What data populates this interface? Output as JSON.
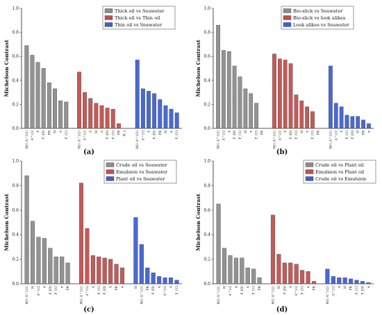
{
  "chart_data": [
    {
      "panel": "a",
      "caption": "(a)",
      "type": "bar",
      "ylabel": "Michelson Contrast",
      "ylim": [
        0,
        1.0
      ],
      "yticks": [
        "0.0",
        "0.2",
        "0.4",
        "0.6",
        "0.8",
        "1.0"
      ],
      "grid": false,
      "legend_position": "top-right",
      "series": [
        {
          "name": "Thick oil vs Seawater",
          "color": "#8c8c8c",
          "categories": [
            "H(1-A^1/2)",
            "A^1/2",
            "A",
            "P_ED",
            "PR",
            "H",
            "α",
            "P_CO"
          ],
          "values": [
            0.69,
            0.61,
            0.55,
            0.5,
            0.38,
            0.33,
            0.23,
            0.22
          ]
        },
        {
          "name": "Thick oil vs Thin oil",
          "color": "#c0504d",
          "categories": [
            "H(1-A^1/2)",
            "A^1/2",
            "A",
            "H",
            "α",
            "P_ED",
            "P_CO",
            "PR",
            "H_s"
          ],
          "values": [
            0.47,
            0.3,
            0.25,
            0.21,
            0.19,
            0.17,
            0.16,
            0.04,
            0.0
          ]
        },
        {
          "name": "Thin  oil vs Seawater",
          "color": "#3f5fcf",
          "categories": [
            "H(1-A^1/2)",
            "A^1/2",
            "A",
            "P_ED",
            "PR",
            "H",
            "α",
            "P_CO"
          ],
          "values": [
            0.57,
            0.33,
            0.31,
            0.29,
            0.24,
            0.19,
            0.16,
            0.13
          ]
        }
      ]
    },
    {
      "panel": "b",
      "caption": "(b)",
      "type": "bar",
      "ylabel": "Michelson Contrast",
      "ylim": [
        0,
        1.0
      ],
      "yticks": [
        "0.0",
        "0.2",
        "0.4",
        "0.6",
        "0.8",
        "1.0"
      ],
      "grid": false,
      "legend_position": "top-right",
      "series": [
        {
          "name": "Bio-slick  vs  Seawater",
          "color": "#8c8c8c",
          "categories": [
            "H(1-A^1/2)",
            "A^1/2",
            "A",
            "P_ED",
            "P_CO",
            "H",
            "α",
            "P_CO",
            "PR"
          ],
          "values": [
            0.86,
            0.65,
            0.64,
            0.52,
            0.43,
            0.33,
            0.29,
            0.21,
            0.0
          ]
        },
        {
          "name": "Bio-slick  vs  look alikes",
          "color": "#c0504d",
          "categories": [
            "H(1-A^1/2)",
            "A^1/2",
            "A",
            "P_ED",
            "P_CO",
            "H",
            "α",
            "P_CO",
            "PR"
          ],
          "values": [
            0.62,
            0.58,
            0.57,
            0.54,
            0.28,
            0.23,
            0.18,
            0.14,
            0.0
          ]
        },
        {
          "name": "Look alikes  vs  Seawater",
          "color": "#3f5fcf",
          "categories": [
            "H(1-A^1/2)",
            "A^1/2",
            "A",
            "P_CO",
            "P_ED",
            "H",
            "PR",
            "α"
          ],
          "values": [
            0.52,
            0.21,
            0.18,
            0.11,
            0.1,
            0.1,
            0.07,
            0.04
          ]
        }
      ]
    },
    {
      "panel": "c",
      "caption": "(c)",
      "type": "bar",
      "ylabel": "Michelson Contrast",
      "ylim": [
        0,
        1.0
      ],
      "yticks": [
        "0.0",
        "0.2",
        "0.4",
        "0.6",
        "0.8",
        "1.0"
      ],
      "grid": false,
      "legend_position": "top-right",
      "series": [
        {
          "name": "Crude oil  vs  Seawater",
          "color": "#8c8c8c",
          "categories": [
            "H(1-A^1/2)",
            "H",
            "A^1/2",
            "A",
            "P_ED",
            "P_CO",
            "α",
            "PR"
          ],
          "values": [
            0.88,
            0.51,
            0.38,
            0.37,
            0.29,
            0.22,
            0.22,
            0.17
          ]
        },
        {
          "name": "Emulsion  vs  Seawater",
          "color": "#c0504d",
          "categories": [
            "H(1-A^1/2)",
            "A^1/2",
            "A",
            "P_CO",
            "P_ED",
            "A",
            "PR",
            "α"
          ],
          "values": [
            0.82,
            0.45,
            0.23,
            0.22,
            0.21,
            0.2,
            0.16,
            0.13
          ]
        },
        {
          "name": "Plant oil  vs  Seawater",
          "color": "#3f5fcf",
          "categories": [
            "H",
            "H(1-A^1/2)",
            "PR",
            "P_ED",
            "α",
            "A^1/2",
            "A",
            "P_CO"
          ],
          "values": [
            0.54,
            0.32,
            0.13,
            0.09,
            0.06,
            0.05,
            0.05,
            0.03
          ]
        }
      ]
    },
    {
      "panel": "d",
      "caption": "(d)",
      "type": "bar",
      "ylabel": "Michelson Contrast",
      "ylim": [
        0,
        1.0
      ],
      "yticks": [
        "0.0",
        "0.2",
        "0.4",
        "0.6",
        "0.8",
        "1.0"
      ],
      "grid": false,
      "legend_position": "top-right",
      "series": [
        {
          "name": "Crude oil vs Plant oil",
          "color": "#8c8c8c",
          "categories": [
            "H(1-A^1/2)",
            "H",
            "A^1/2",
            "A",
            "P_ED",
            "α",
            "P_CO",
            "PR"
          ],
          "values": [
            0.65,
            0.29,
            0.23,
            0.21,
            0.21,
            0.13,
            0.12,
            0.05
          ]
        },
        {
          "name": "Emulsion   vs Plant oil",
          "color": "#c0504d",
          "categories": [
            "H(1-A^1/2)",
            "H",
            "P_ED",
            "A",
            "A^1/2",
            "P_CO",
            "α",
            "PR"
          ],
          "values": [
            0.56,
            0.24,
            0.17,
            0.17,
            0.16,
            0.11,
            0.1,
            0.02
          ]
        },
        {
          "name": "Crude oil vs   Emulsion",
          "color": "#3f5fcf",
          "categories": [
            "H(1-A^1/2)",
            "A^1/2",
            "A",
            "H",
            "PR",
            "P_CO",
            "P_ED",
            "α"
          ],
          "values": [
            0.12,
            0.06,
            0.05,
            0.05,
            0.04,
            0.03,
            0.02,
            0.01
          ]
        }
      ]
    }
  ]
}
